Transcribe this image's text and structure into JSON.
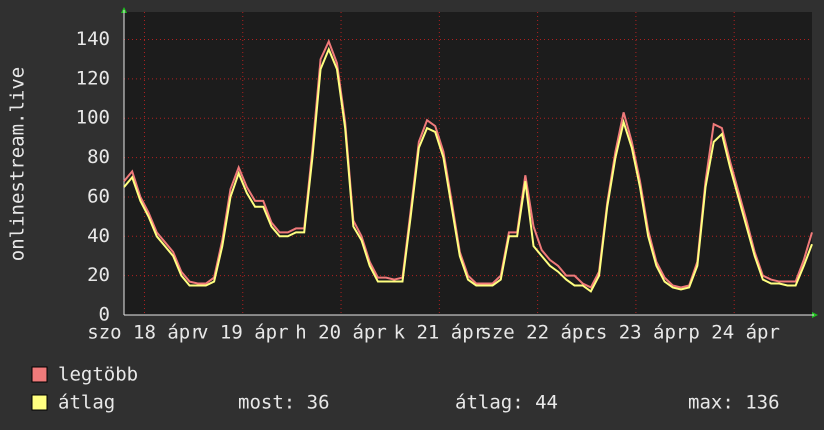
{
  "chart_data": {
    "type": "line",
    "ylabel": "onlinestream.live",
    "x": [
      0,
      2,
      4,
      6,
      8,
      10,
      12,
      14,
      16,
      18,
      20,
      22,
      24,
      26,
      28,
      30,
      32,
      34,
      36,
      38,
      40,
      42,
      44,
      46,
      48,
      50,
      52,
      54,
      56,
      58,
      60,
      62,
      64,
      66,
      68,
      70,
      72,
      74,
      76,
      78,
      80,
      82,
      84,
      86,
      88,
      90,
      92,
      94,
      96,
      98,
      100,
      102,
      104,
      106,
      108,
      110,
      112,
      114,
      116,
      118,
      120,
      122,
      124,
      126,
      128,
      130,
      132,
      134,
      136,
      138,
      140,
      142,
      144,
      146,
      148,
      150,
      152,
      154,
      156,
      158,
      160,
      162,
      164,
      166,
      168
    ],
    "xlim": [
      0,
      168
    ],
    "xticks": [
      {
        "value": 5,
        "label": "szo 18 ápr"
      },
      {
        "value": 29,
        "label": "v 19 ápr"
      },
      {
        "value": 53,
        "label": "h 20 ápr"
      },
      {
        "value": 77,
        "label": "k 21 ápr"
      },
      {
        "value": 101,
        "label": "sze 22 ápr"
      },
      {
        "value": 125,
        "label": "cs 23 ápr"
      },
      {
        "value": 149,
        "label": "p 24 ápr"
      }
    ],
    "ylim": [
      0,
      154
    ],
    "yticks": [
      0,
      20,
      40,
      60,
      80,
      100,
      120,
      140
    ],
    "grid": true,
    "series": [
      {
        "name": "legtöbb",
        "color": "#f07a7a",
        "values": [
          68,
          73,
          60,
          52,
          42,
          37,
          32,
          22,
          17,
          16,
          16,
          19,
          38,
          64,
          75,
          65,
          58,
          58,
          47,
          42,
          42,
          44,
          44,
          84,
          130,
          139,
          128,
          98,
          48,
          40,
          27,
          19,
          19,
          18,
          19,
          53,
          88,
          99,
          96,
          83,
          58,
          32,
          20,
          16,
          16,
          16,
          20,
          42,
          42,
          71,
          45,
          33,
          28,
          25,
          20,
          20,
          16,
          14,
          22,
          57,
          83,
          103,
          88,
          68,
          43,
          27,
          19,
          15,
          14,
          15,
          27,
          68,
          97,
          95,
          78,
          63,
          48,
          32,
          20,
          18,
          17,
          17,
          17,
          28,
          42
        ]
      },
      {
        "name": "átlag",
        "color": "#ffff80",
        "values": [
          65,
          70,
          58,
          50,
          40,
          35,
          30,
          20,
          15,
          15,
          15,
          17,
          35,
          60,
          72,
          62,
          55,
          55,
          45,
          40,
          40,
          42,
          42,
          80,
          125,
          135,
          125,
          95,
          45,
          38,
          25,
          17,
          17,
          17,
          17,
          50,
          85,
          95,
          93,
          80,
          55,
          30,
          18,
          15,
          15,
          15,
          18,
          40,
          40,
          68,
          35,
          30,
          25,
          22,
          18,
          15,
          15,
          12,
          20,
          55,
          80,
          98,
          85,
          65,
          40,
          25,
          17,
          14,
          13,
          14,
          25,
          65,
          88,
          92,
          75,
          60,
          45,
          30,
          18,
          16,
          16,
          15,
          15,
          25,
          36
        ]
      }
    ],
    "stats": [
      "most: 36",
      "átlag: 44",
      "max: 136"
    ]
  }
}
